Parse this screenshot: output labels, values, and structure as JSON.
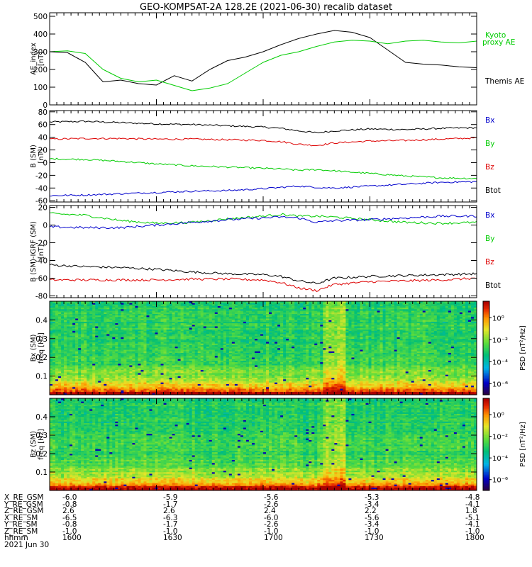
{
  "title": "GEO-KOMPSAT-2A 128.2E (2021-06-30) recalib dataset",
  "chart_data": [
    {
      "type": "line",
      "ylabel": "AE_index\n[nT]",
      "ylim": [
        0,
        520
      ],
      "yticks": [
        0,
        100,
        200,
        300,
        400,
        500
      ],
      "x": [
        1600,
        1605,
        1610,
        1615,
        1620,
        1625,
        1630,
        1635,
        1640,
        1645,
        1650,
        1655,
        1700,
        1705,
        1710,
        1715,
        1720,
        1725,
        1730,
        1735,
        1740,
        1745,
        1750,
        1755,
        1800
      ],
      "series": [
        {
          "name": "Themis AE",
          "color": "#000000",
          "values": [
            300,
            295,
            240,
            130,
            140,
            120,
            112,
            165,
            135,
            200,
            250,
            270,
            300,
            340,
            375,
            400,
            420,
            410,
            380,
            310,
            240,
            230,
            225,
            215,
            210
          ]
        },
        {
          "name": "Kyoto proxy AE",
          "color": "#00cc00",
          "values": [
            300,
            305,
            290,
            200,
            150,
            130,
            140,
            110,
            80,
            95,
            120,
            180,
            240,
            280,
            300,
            330,
            355,
            365,
            360,
            345,
            360,
            365,
            355,
            350,
            360
          ]
        }
      ],
      "annotations": [
        "Kyoto",
        "proxy AE",
        "Themis AE"
      ]
    },
    {
      "type": "line",
      "ylabel": "B (SM)\n[nT]",
      "ylim": [
        -62,
        82
      ],
      "yticks": [
        -60,
        -40,
        -20,
        0,
        20,
        40,
        60,
        80
      ],
      "x": [
        1600,
        1610,
        1620,
        1630,
        1640,
        1650,
        1700,
        1705,
        1710,
        1715,
        1720,
        1730,
        1740,
        1750,
        1800
      ],
      "series": [
        {
          "color": "#000000",
          "values": [
            64,
            65,
            63,
            61,
            60,
            58,
            56,
            54,
            50,
            47,
            50,
            53,
            52,
            54,
            55
          ]
        },
        {
          "color": "#dd0000",
          "values": [
            37,
            38,
            38,
            37,
            37,
            36,
            35,
            33,
            29,
            27,
            31,
            34,
            35,
            37,
            39
          ]
        },
        {
          "color": "#00cc00",
          "values": [
            6,
            5,
            2,
            -2,
            -5,
            -7,
            -9,
            -10,
            -12,
            -11,
            -13,
            -17,
            -21,
            -24,
            -25
          ]
        },
        {
          "color": "#0000cc",
          "values": [
            -52,
            -51,
            -49,
            -47,
            -45,
            -44,
            -41,
            -39,
            -37,
            -39,
            -40,
            -37,
            -34,
            -31,
            -30
          ]
        }
      ],
      "legend": [
        "Bx",
        "By",
        "Bz",
        "Btot"
      ],
      "legend_colors": [
        "#0000cc",
        "#00cc00",
        "#dd0000",
        "#000000"
      ]
    },
    {
      "type": "line",
      "ylabel": "B (SM)-IGRF (SM)\n[nT]",
      "ylim": [
        -82,
        22
      ],
      "yticks": [
        -80,
        -60,
        -40,
        -20,
        0,
        20
      ],
      "x": [
        1600,
        1610,
        1620,
        1630,
        1640,
        1650,
        1700,
        1705,
        1710,
        1715,
        1720,
        1730,
        1740,
        1750,
        1800
      ],
      "series": [
        {
          "color": "#000000",
          "values": [
            -45,
            -47,
            -48,
            -50,
            -53,
            -55,
            -56,
            -58,
            -63,
            -66,
            -60,
            -58,
            -57,
            -56,
            -55
          ]
        },
        {
          "color": "#dd0000",
          "values": [
            -62,
            -62,
            -62,
            -62,
            -61,
            -61,
            -62,
            -65,
            -71,
            -74,
            -67,
            -64,
            -63,
            -62,
            -60
          ]
        },
        {
          "color": "#00cc00",
          "values": [
            13,
            11,
            5,
            2,
            3,
            7,
            10,
            12,
            10,
            10,
            9,
            6,
            3,
            2,
            3
          ]
        },
        {
          "color": "#0000cc",
          "values": [
            -2,
            -3,
            -3,
            0,
            3,
            6,
            8,
            9,
            8,
            3,
            5,
            6,
            8,
            10,
            10
          ]
        }
      ],
      "legend": [
        "Bx",
        "By",
        "Bz",
        "Btot"
      ],
      "legend_colors": [
        "#0000cc",
        "#00cc00",
        "#dd0000",
        "#000000"
      ]
    },
    {
      "type": "heatmap",
      "ylabel": "Bx (SM)\nfreq [Hz]",
      "ylim": [
        0,
        0.5
      ],
      "yticks": [
        0.1,
        0.2,
        0.3,
        0.4
      ],
      "colorbar": {
        "label": "PSD [nT²/Hz]",
        "ticks": [
          "10⁰",
          "10⁻²",
          "10⁻⁴",
          "10⁻⁶"
        ],
        "log_range": [
          -7,
          1.5
        ]
      }
    },
    {
      "type": "heatmap",
      "ylabel": "Bz (SM)\nfreq [Hz]",
      "ylim": [
        0,
        0.5
      ],
      "yticks": [
        0.1,
        0.2,
        0.3,
        0.4
      ],
      "colorbar": {
        "label": "PSD [nT²/Hz]",
        "ticks": [
          "10⁰",
          "10⁻²",
          "10⁻⁴",
          "10⁻⁶"
        ],
        "log_range": [
          -7,
          1.5
        ]
      }
    }
  ],
  "ephemeris": {
    "rows": [
      {
        "label": "X_RE_GSM",
        "values": [
          "-6.0",
          "-5.9",
          "-5.6",
          "-5.3",
          "-4.8"
        ]
      },
      {
        "label": "Y_RE_GSM",
        "values": [
          "-0.8",
          "-1.7",
          "-2.6",
          "-3.4",
          "-4.1"
        ]
      },
      {
        "label": "Z_RE_GSM",
        "values": [
          "2.6",
          "2.6",
          "2.4",
          "2.2",
          "1.8"
        ]
      },
      {
        "label": "X_RE_SM",
        "values": [
          "-6.5",
          "-6.3",
          "-6.0",
          "-5.6",
          "-5.1"
        ]
      },
      {
        "label": "Y_RE_SM",
        "values": [
          "-0.8",
          "-1.7",
          "-2.6",
          "-3.4",
          "-4.1"
        ]
      },
      {
        "label": "Z_RE_SM",
        "values": [
          "-1.0",
          "-1.0",
          "-1.0",
          "-1.0",
          "-1.0"
        ]
      },
      {
        "label": "hhmm",
        "values": [
          "1600",
          "1630",
          "1700",
          "1730",
          "1800"
        ]
      }
    ],
    "date": "2021 Jun 30"
  }
}
